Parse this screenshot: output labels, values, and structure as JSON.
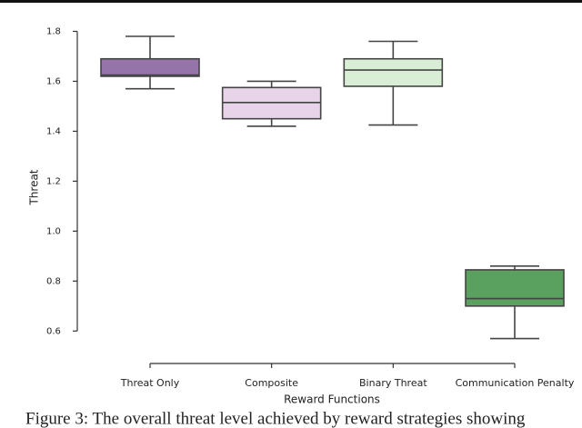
{
  "chart_data": {
    "type": "box",
    "x_label": "Reward Functions",
    "y_label": "Threat",
    "categories": [
      "Threat Only",
      "Composite",
      "Binary Threat",
      "Communication Penalty"
    ],
    "colors": [
      "#9474a9",
      "#e7d4e8",
      "#d9efd5",
      "#5aa05e"
    ],
    "boxes": [
      {
        "min": 1.57,
        "q1": 1.62,
        "median": 1.625,
        "q3": 1.69,
        "max": 1.78
      },
      {
        "min": 1.42,
        "q1": 1.45,
        "median": 1.515,
        "q3": 1.575,
        "max": 1.6
      },
      {
        "min": 1.425,
        "q1": 1.58,
        "median": 1.645,
        "q3": 1.69,
        "max": 1.76
      },
      {
        "min": 0.57,
        "q1": 0.7,
        "median": 0.73,
        "q3": 0.845,
        "max": 0.86
      }
    ],
    "ylim": [
      0.47,
      1.82
    ],
    "yticks": [
      {
        "value": 0.6,
        "label": "0.6"
      },
      {
        "value": 0.8,
        "label": "0.8"
      },
      {
        "value": 1.0,
        "label": "1.0"
      },
      {
        "value": 1.2,
        "label": "1.2"
      },
      {
        "value": 1.4,
        "label": "1.4"
      },
      {
        "value": 1.6,
        "label": "1.6"
      },
      {
        "value": 1.8,
        "label": "1.8"
      }
    ]
  },
  "caption": "Figure 3: The overall threat level achieved by reward strategies showing"
}
